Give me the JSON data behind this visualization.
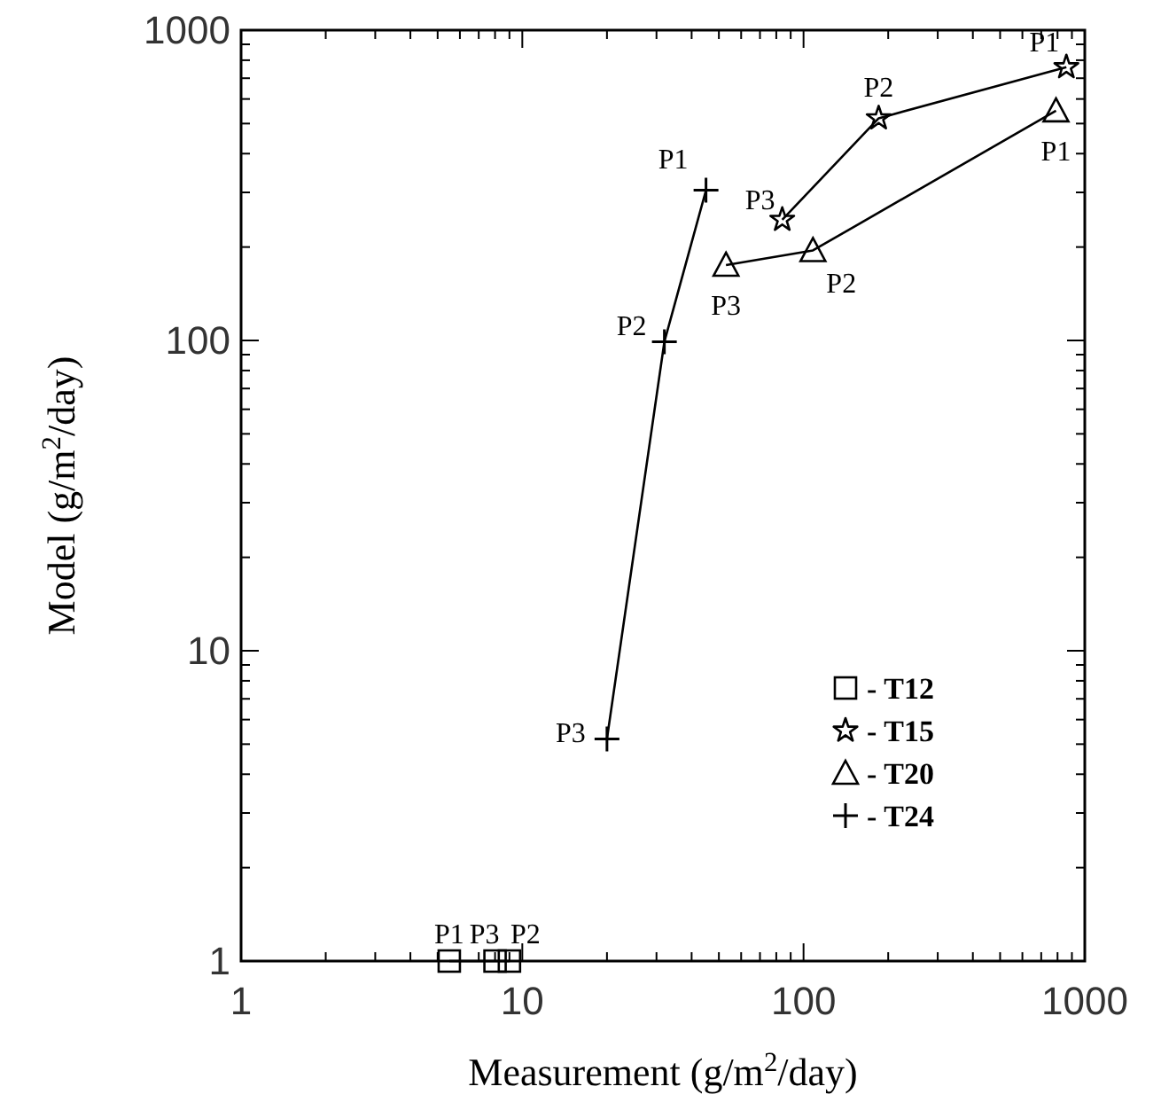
{
  "chart_data": {
    "type": "line",
    "xlabel": "Measurement (g/m$^{2}$/day)",
    "ylabel": "Model (g/m$^{2}$/day)",
    "log": "xy",
    "xlim": [
      1,
      1000
    ],
    "ylim": [
      1,
      1000
    ],
    "xticks": [
      1,
      {
        "value": 2,
        "label": null
      },
      {
        "value": 3,
        "label": null
      },
      {
        "value": 4,
        "label": null
      },
      {
        "value": 5,
        "label": null
      },
      {
        "value": 6,
        "label": null
      },
      {
        "value": 7,
        "label": null
      },
      {
        "value": 8,
        "label": null
      },
      {
        "value": 9,
        "label": null
      },
      10,
      {
        "value": 20,
        "label": null
      },
      {
        "value": 30,
        "label": null
      },
      {
        "value": 40,
        "label": null
      },
      {
        "value": 50,
        "label": null
      },
      {
        "value": 60,
        "label": null
      },
      {
        "value": 70,
        "label": null
      },
      {
        "value": 80,
        "label": null
      },
      {
        "value": 90,
        "label": null
      },
      100,
      {
        "value": 200,
        "label": null
      },
      {
        "value": 300,
        "label": null
      },
      {
        "value": 400,
        "label": null
      },
      {
        "value": 500,
        "label": null
      },
      {
        "value": 600,
        "label": null
      },
      {
        "value": 700,
        "label": null
      },
      {
        "value": 800,
        "label": null
      },
      {
        "value": 900,
        "label": null
      },
      1000
    ],
    "yticks": [
      1,
      {
        "value": 2,
        "label": null
      },
      {
        "value": 3,
        "label": null
      },
      {
        "value": 4,
        "label": null
      },
      {
        "value": 5,
        "label": null
      },
      {
        "value": 6,
        "label": null
      },
      {
        "value": 7,
        "label": null
      },
      {
        "value": 8,
        "label": null
      },
      {
        "value": 9,
        "label": null
      },
      10,
      {
        "value": 20,
        "label": null
      },
      {
        "value": 30,
        "label": null
      },
      {
        "value": 40,
        "label": null
      },
      {
        "value": 50,
        "label": null
      },
      {
        "value": 60,
        "label": null
      },
      {
        "value": 70,
        "label": null
      },
      {
        "value": 80,
        "label": null
      },
      {
        "value": 90,
        "label": null
      },
      100,
      {
        "value": 200,
        "label": null
      },
      {
        "value": 300,
        "label": null
      },
      {
        "value": 400,
        "label": null
      },
      {
        "value": 500,
        "label": null
      },
      {
        "value": 600,
        "label": null
      },
      {
        "value": 700,
        "label": null
      },
      {
        "value": 800,
        "label": null
      },
      {
        "value": 900,
        "label": null
      },
      1000
    ],
    "legend": "bottom right",
    "line_style": "solid",
    "series": [
      {
        "name": "- T12",
        "color": "#000000",
        "marker": "square",
        "x": [
          5.5,
          9,
          8
        ],
        "values": [
          1,
          1,
          1
        ]
      },
      {
        "name": "- T15",
        "color": "#000000",
        "marker": "star",
        "x": [
          860,
          185,
          84
        ],
        "values": [
          760,
          520,
          245
        ]
      },
      {
        "name": "- T20",
        "color": "#000000",
        "marker": "triangle",
        "x": [
          790,
          108,
          53
        ],
        "values": [
          550,
          195,
          175
        ]
      },
      {
        "name": "- T24",
        "color": "#000000",
        "marker": "cross",
        "x": [
          45,
          32,
          20
        ],
        "values": [
          305,
          99,
          5.2
        ]
      }
    ],
    "annotations": [
      {
        "text": "P1",
        "x": 5.5,
        "y": 1
      },
      {
        "text": "P2",
        "x": 9,
        "y": 1
      },
      {
        "text": "P3",
        "x": 8,
        "y": 1
      },
      {
        "text": "P1",
        "x": 860,
        "y": 760
      },
      {
        "text": "P2",
        "x": 185,
        "y": 520
      },
      {
        "text": "P3",
        "x": 84,
        "y": 245
      },
      {
        "text": "P1",
        "x": 790,
        "y": 550
      },
      {
        "text": "P2",
        "x": 108,
        "y": 195
      },
      {
        "text": "P3",
        "x": 53,
        "y": 175
      },
      {
        "text": "P1",
        "x": 45,
        "y": 305
      },
      {
        "text": "P2",
        "x": 32,
        "y": 99
      },
      {
        "text": "P3",
        "x": 20,
        "y": 5.2
      }
    ]
  }
}
